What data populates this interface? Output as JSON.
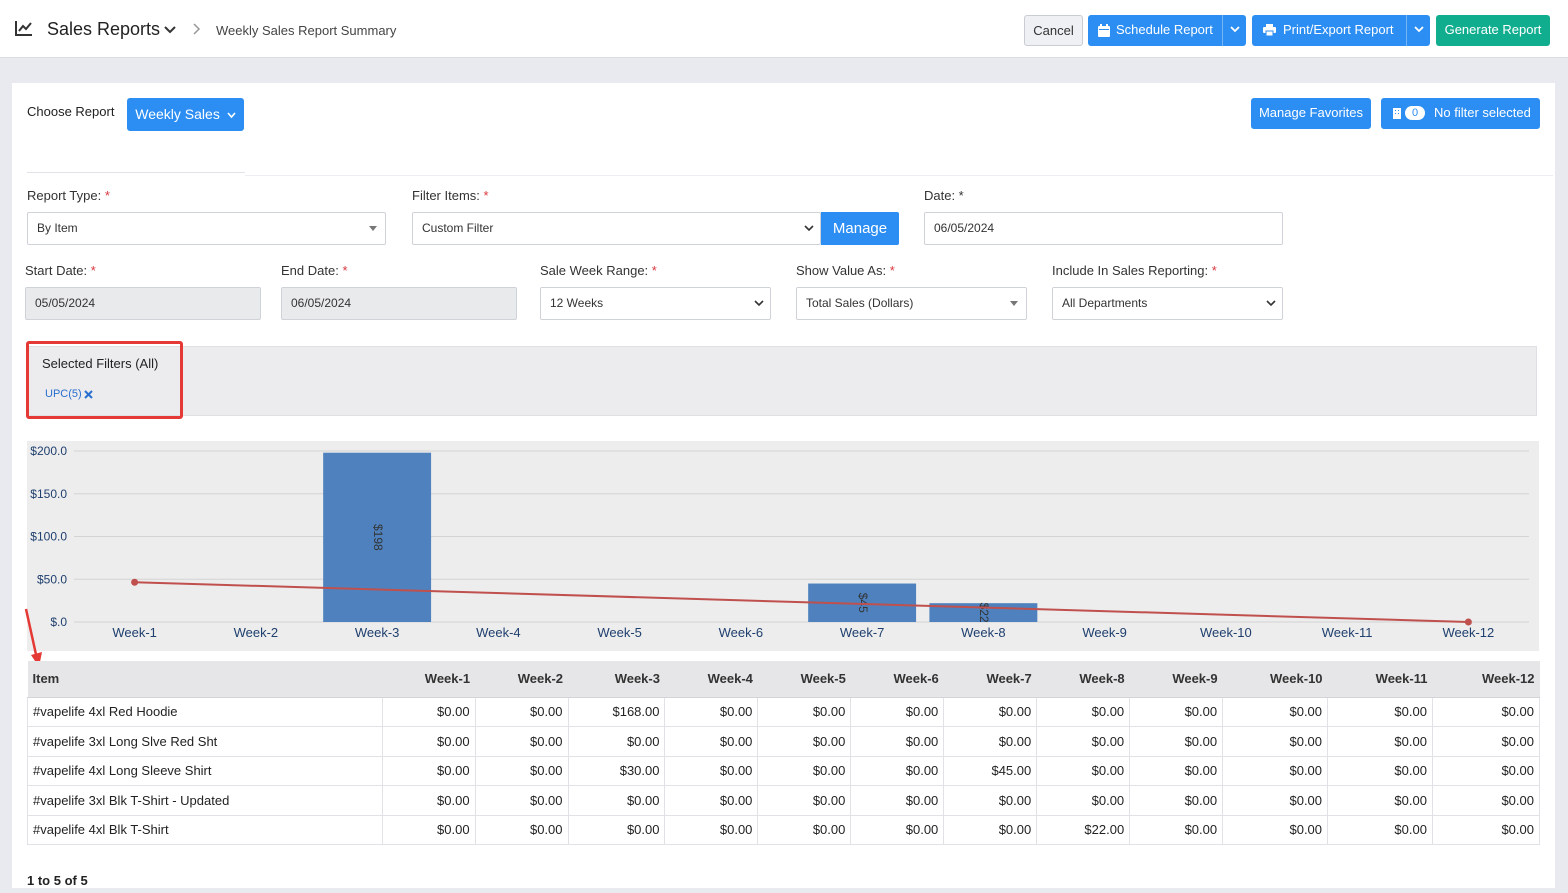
{
  "header": {
    "title": "Sales Reports",
    "breadcrumb": "Weekly Sales Report Summary",
    "cancel_label": "Cancel",
    "schedule_label": "Schedule Report",
    "print_label": "Print/Export Report",
    "generate_label": "Generate Report"
  },
  "report_picker": {
    "label": "Choose Report",
    "selected": "Weekly Sales",
    "manage_favorites_label": "Manage Favorites",
    "filter_count": "0",
    "filter_status": "No filter selected"
  },
  "form": {
    "report_type": {
      "label": "Report Type:",
      "req": "*",
      "value": "By Item"
    },
    "filter_items": {
      "label": "Filter Items:",
      "req": "*",
      "value": "Custom Filter",
      "manage_label": "Manage"
    },
    "date": {
      "label": "Date: *",
      "value": "06/05/2024"
    },
    "start_date": {
      "label": "Start Date:",
      "req": "*",
      "value": "05/05/2024"
    },
    "end_date": {
      "label": "End Date:",
      "req": "*",
      "value": "06/05/2024"
    },
    "sale_week_range": {
      "label": "Sale Week Range:",
      "req": "*",
      "value": "12 Weeks"
    },
    "show_value_as": {
      "label": "Show Value As:",
      "req": "*",
      "value": "Total Sales (Dollars)"
    },
    "include_in_sales": {
      "label": "Include In Sales Reporting:",
      "req": "*",
      "value": "All Departments"
    }
  },
  "selected_filters": {
    "title": "Selected Filters (All)",
    "chip": "UPC(5)"
  },
  "chart_data": {
    "type": "bar",
    "categories": [
      "Week-1",
      "Week-2",
      "Week-3",
      "Week-4",
      "Week-5",
      "Week-6",
      "Week-7",
      "Week-8",
      "Week-9",
      "Week-10",
      "Week-11",
      "Week-12"
    ],
    "series": [
      {
        "type": "bar",
        "values": [
          0,
          0,
          198,
          0,
          0,
          0,
          45,
          22,
          0,
          0,
          0,
          0
        ],
        "labels": [
          "",
          "",
          "$198",
          "",
          "",
          "",
          "$45",
          "$22",
          "",
          "",
          "",
          ""
        ],
        "color": "#4e81bd"
      },
      {
        "type": "line",
        "values": [
          46.5,
          null,
          null,
          null,
          null,
          null,
          null,
          null,
          null,
          null,
          null,
          0
        ],
        "color": "#c0504d"
      }
    ],
    "y_ticks": [
      "$.0",
      "$50.0",
      "$100.0",
      "$150.0",
      "$200.0"
    ],
    "ylim": [
      0,
      200
    ],
    "grid": true
  },
  "table": {
    "columns": [
      "Item",
      "Week-1",
      "Week-2",
      "Week-3",
      "Week-4",
      "Week-5",
      "Week-6",
      "Week-7",
      "Week-8",
      "Week-9",
      "Week-10",
      "Week-11",
      "Week-12"
    ],
    "rows": [
      [
        "#vapelife 4xl Red Hoodie",
        "$0.00",
        "$0.00",
        "$168.00",
        "$0.00",
        "$0.00",
        "$0.00",
        "$0.00",
        "$0.00",
        "$0.00",
        "$0.00",
        "$0.00",
        "$0.00"
      ],
      [
        "#vapelife 3xl Long Slve Red Sht",
        "$0.00",
        "$0.00",
        "$0.00",
        "$0.00",
        "$0.00",
        "$0.00",
        "$0.00",
        "$0.00",
        "$0.00",
        "$0.00",
        "$0.00",
        "$0.00"
      ],
      [
        "#vapelife 4xl Long Sleeve Shirt",
        "$0.00",
        "$0.00",
        "$30.00",
        "$0.00",
        "$0.00",
        "$0.00",
        "$45.00",
        "$0.00",
        "$0.00",
        "$0.00",
        "$0.00",
        "$0.00"
      ],
      [
        "#vapelife 3xl Blk T-Shirt - Updated",
        "$0.00",
        "$0.00",
        "$0.00",
        "$0.00",
        "$0.00",
        "$0.00",
        "$0.00",
        "$0.00",
        "$0.00",
        "$0.00",
        "$0.00",
        "$0.00"
      ],
      [
        "#vapelife 4xl Blk T-Shirt",
        "$0.00",
        "$0.00",
        "$0.00",
        "$0.00",
        "$0.00",
        "$0.00",
        "$0.00",
        "$22.00",
        "$0.00",
        "$0.00",
        "$0.00",
        "$0.00"
      ]
    ]
  },
  "pager": "1 to 5 of 5"
}
